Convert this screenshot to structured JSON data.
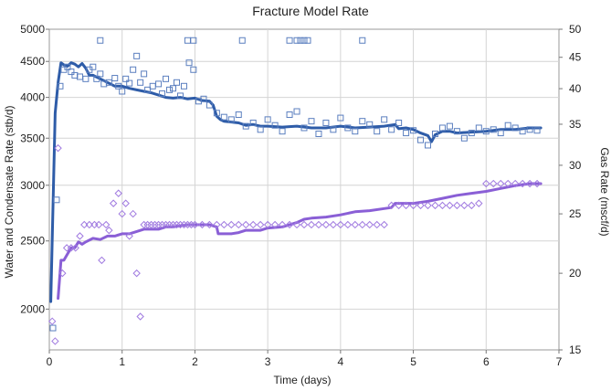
{
  "chart_data": {
    "type": "scatter",
    "title": "Fracture Model Rate",
    "xlabel": "Time (days)",
    "ylabel": "Water and Condensate Rate (stb/d)",
    "y2label": "Gas Rate (mscf/d)",
    "xlim": [
      0,
      7
    ],
    "ylim": [
      1750,
      5000
    ],
    "y2lim": [
      15,
      50
    ],
    "x_ticks": [
      "0",
      "1",
      "2",
      "3",
      "4",
      "5",
      "6",
      "7"
    ],
    "y_ticks": [
      "2000",
      "2500",
      "3000",
      "3500",
      "4000",
      "4500",
      "5000"
    ],
    "y2_ticks": [
      "15",
      "20",
      "25",
      "30",
      "35",
      "40",
      "45",
      "50"
    ],
    "grid": true,
    "colors": {
      "condensate": "#2E5CA8",
      "condensate_marker": "#5B7FBF",
      "gas": "#8A5FD6",
      "gas_marker": "#A07AE0"
    },
    "series": [
      {
        "kind": "line",
        "axis": "left",
        "x": [
          0.02,
          0.08,
          0.12,
          0.16,
          0.2,
          0.25,
          0.3,
          0.35,
          0.4,
          0.45,
          0.5,
          0.55,
          0.6,
          0.7,
          0.8,
          0.9,
          1.0,
          1.1,
          1.2,
          1.3,
          1.4,
          1.5,
          1.6,
          1.7,
          1.8,
          1.9,
          2.0,
          2.1,
          2.2,
          2.25,
          2.3,
          2.35,
          2.4,
          2.5,
          2.6,
          2.7,
          2.8,
          2.9,
          3.0,
          3.2,
          3.4,
          3.6,
          3.8,
          4.0,
          4.2,
          4.4,
          4.6,
          4.75,
          4.8,
          4.9,
          5.0,
          5.1,
          5.2,
          5.25,
          5.3,
          5.4,
          5.5,
          5.6,
          5.8,
          6.0,
          6.2,
          6.4,
          6.6,
          6.75
        ],
        "y": [
          2050,
          3800,
          4200,
          4480,
          4450,
          4430,
          4480,
          4460,
          4420,
          4470,
          4400,
          4300,
          4300,
          4250,
          4200,
          4150,
          4150,
          4120,
          4100,
          4080,
          4060,
          4030,
          4000,
          3990,
          4000,
          3980,
          3990,
          3960,
          3950,
          3900,
          3760,
          3720,
          3700,
          3690,
          3680,
          3650,
          3660,
          3640,
          3640,
          3630,
          3640,
          3620,
          3620,
          3640,
          3620,
          3630,
          3640,
          3660,
          3610,
          3620,
          3600,
          3560,
          3530,
          3460,
          3540,
          3580,
          3580,
          3560,
          3570,
          3580,
          3600,
          3600,
          3620,
          3620
        ]
      },
      {
        "kind": "markers",
        "axis": "left",
        "x": [
          0.05,
          0.1,
          0.15,
          0.2,
          0.25,
          0.3,
          0.35,
          0.42,
          0.5,
          0.55,
          0.6,
          0.65,
          0.7,
          0.75,
          0.82,
          0.9,
          0.95,
          1.0,
          1.05,
          1.1,
          1.15,
          1.2,
          1.25,
          1.3,
          1.35,
          1.42,
          1.5,
          1.55,
          1.6,
          1.65,
          1.7,
          1.75,
          1.8,
          1.85,
          1.92,
          1.98,
          2.05,
          2.12,
          2.2,
          2.3,
          2.4,
          2.5,
          2.6,
          2.7,
          2.8,
          2.9,
          3.0,
          3.1,
          3.2,
          3.3,
          3.4,
          3.5,
          3.6,
          3.7,
          3.8,
          3.9,
          4.0,
          4.1,
          4.2,
          4.3,
          4.4,
          4.5,
          4.6,
          4.7,
          4.8,
          4.9,
          5.0,
          5.1,
          5.2,
          5.3,
          5.4,
          5.5,
          5.6,
          5.7,
          5.8,
          5.9,
          6.0,
          6.1,
          6.2,
          6.3,
          6.4,
          6.5,
          6.6,
          6.7
        ],
        "y": [
          1880,
          2860,
          4150,
          4380,
          4420,
          4350,
          4300,
          4280,
          4250,
          4380,
          4420,
          4250,
          4320,
          4180,
          4200,
          4260,
          4150,
          4080,
          4250,
          4190,
          4380,
          4580,
          4200,
          4320,
          4100,
          4150,
          4180,
          4050,
          4250,
          4100,
          4120,
          4200,
          4020,
          4150,
          4480,
          4380,
          3950,
          3980,
          3900,
          3800,
          3750,
          3720,
          3780,
          3640,
          3680,
          3600,
          3720,
          3650,
          3580,
          3780,
          3820,
          3620,
          3700,
          3550,
          3680,
          3600,
          3740,
          3620,
          3580,
          3700,
          3660,
          3580,
          3720,
          3600,
          3680,
          3560,
          3590,
          3480,
          3420,
          3550,
          3620,
          3640,
          3580,
          3500,
          3560,
          3620,
          3580,
          3600,
          3560,
          3650,
          3620,
          3580,
          3600,
          3590
        ]
      },
      {
        "kind": "markers",
        "axis": "left",
        "x": [
          0.7,
          1.9,
          1.98,
          2.65,
          3.3,
          3.4,
          3.45,
          3.5,
          3.55,
          4.3
        ],
        "y": [
          4820,
          4820,
          4820,
          4820,
          4820,
          4820,
          4820,
          4820,
          4820,
          4820
        ]
      },
      {
        "kind": "line",
        "axis": "right",
        "x": [
          0.12,
          0.16,
          0.2,
          0.25,
          0.3,
          0.35,
          0.4,
          0.45,
          0.5,
          0.6,
          0.7,
          0.8,
          0.9,
          1.0,
          1.1,
          1.2,
          1.3,
          1.4,
          1.5,
          1.6,
          1.7,
          1.8,
          1.9,
          2.0,
          2.1,
          2.2,
          2.3,
          2.32,
          2.4,
          2.5,
          2.6,
          2.7,
          2.8,
          2.9,
          3.0,
          3.2,
          3.4,
          3.5,
          3.6,
          3.8,
          4.0,
          4.2,
          4.4,
          4.6,
          4.7,
          4.75,
          4.8,
          5.0,
          5.2,
          5.4,
          5.6,
          5.8,
          6.0,
          6.2,
          6.4,
          6.6,
          6.75
        ],
        "y": [
          18.2,
          21.0,
          21.0,
          21.5,
          22.0,
          22.0,
          22.5,
          22.3,
          22.5,
          22.8,
          22.7,
          23.0,
          23.0,
          23.2,
          23.2,
          23.4,
          23.6,
          23.6,
          23.6,
          23.8,
          23.8,
          23.9,
          24.0,
          24.0,
          24.0,
          24.0,
          23.8,
          23.2,
          23.2,
          23.2,
          23.3,
          23.5,
          23.5,
          23.5,
          23.7,
          23.8,
          24.2,
          24.5,
          24.6,
          24.7,
          24.9,
          25.2,
          25.3,
          25.5,
          25.6,
          26.0,
          26.0,
          26.0,
          26.2,
          26.5,
          26.8,
          27.0,
          27.2,
          27.5,
          27.8,
          28.0,
          28.0
        ]
      },
      {
        "kind": "markers",
        "axis": "right",
        "x": [
          0.04,
          0.08,
          0.12,
          0.18,
          0.24,
          0.3,
          0.36,
          0.42,
          0.48,
          0.55,
          0.62,
          0.68,
          0.72,
          0.78,
          0.82,
          0.88,
          0.95,
          1.0,
          1.05,
          1.1,
          1.15,
          1.2,
          1.25,
          1.3,
          1.35,
          1.4,
          1.45,
          1.5,
          1.55,
          1.6,
          1.65,
          1.7,
          1.75,
          1.8,
          1.85,
          1.9,
          1.95,
          2.0,
          2.1,
          2.2,
          2.3,
          2.4,
          2.5,
          2.6,
          2.7,
          2.8,
          2.9,
          3.0,
          3.1,
          3.2,
          3.3,
          3.4,
          3.5,
          3.6,
          3.7,
          3.8,
          3.9,
          4.0,
          4.1,
          4.2,
          4.3,
          4.4,
          4.5,
          4.6,
          4.7,
          4.8,
          4.9,
          5.0,
          5.1,
          5.2,
          5.3,
          5.4,
          5.5,
          5.6,
          5.7,
          5.8,
          5.9,
          6.0,
          6.1,
          6.2,
          6.3,
          6.4,
          6.5,
          6.6,
          6.7
        ],
        "y": [
          16.7,
          15.5,
          32.0,
          20.0,
          22.0,
          22.0,
          22.0,
          23.0,
          24.0,
          24.0,
          24.0,
          24.0,
          21.0,
          24.0,
          23.5,
          26.0,
          27.0,
          25.0,
          26.0,
          23.0,
          25.0,
          20.0,
          17.0,
          24.0,
          24.0,
          24.0,
          24.0,
          24.0,
          24.0,
          24.0,
          24.0,
          24.0,
          24.0,
          24.0,
          24.0,
          24.0,
          24.0,
          24.0,
          24.0,
          24.0,
          24.0,
          24.0,
          24.0,
          24.0,
          24.0,
          24.0,
          24.0,
          24.0,
          24.0,
          24.0,
          24.0,
          24.0,
          24.0,
          24.0,
          24.0,
          24.0,
          24.0,
          24.0,
          24.0,
          24.0,
          24.0,
          24.0,
          24.0,
          24.0,
          25.8,
          25.8,
          25.8,
          25.8,
          25.8,
          25.8,
          25.8,
          25.8,
          25.8,
          25.8,
          25.8,
          25.8,
          26.0,
          28.0,
          28.0,
          28.0,
          28.0,
          28.0,
          28.0,
          28.0,
          28.0
        ]
      }
    ]
  }
}
